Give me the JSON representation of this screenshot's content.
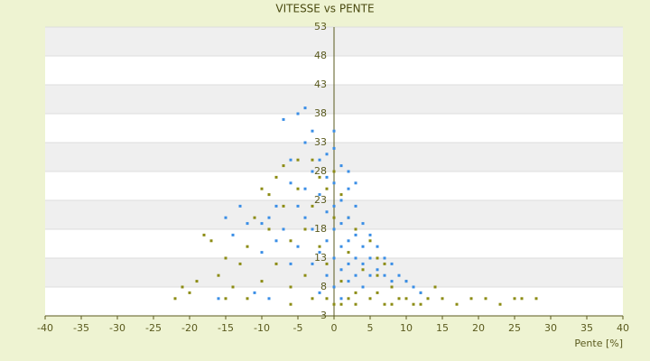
{
  "chart_data": {
    "type": "scatter",
    "title": "VITESSE vs PENTE",
    "x_label": "Pente [%]",
    "xlim": [
      -40,
      40
    ],
    "xticks": [
      -40,
      -35,
      -30,
      -25,
      -20,
      -15,
      -10,
      -5,
      0,
      5,
      10,
      15,
      20,
      25,
      30,
      35,
      40
    ],
    "ylim": [
      3,
      53
    ],
    "yticks": [
      3,
      8,
      13,
      18,
      23,
      28,
      33,
      38,
      43,
      48,
      53
    ],
    "grid": true,
    "series": [
      {
        "color": "#8c8c14",
        "x": [
          -22,
          -20,
          -19,
          -18,
          -17,
          -16,
          -15,
          -14,
          -13,
          -12,
          -11,
          -10,
          -10,
          -9,
          -8,
          -8,
          -7,
          -6,
          -6,
          -5,
          -5,
          -4,
          -4,
          -3,
          -3,
          -2,
          -2,
          -1,
          -1,
          0,
          0,
          1,
          1,
          2,
          2,
          3,
          3,
          4,
          4,
          5,
          5,
          6,
          6,
          7,
          7,
          8,
          9,
          10,
          11,
          12,
          13,
          14,
          15,
          17,
          19,
          21,
          23,
          25,
          26,
          28,
          -21,
          -12,
          -6,
          -3,
          0,
          2,
          -7,
          -9,
          1,
          3,
          -15,
          10,
          12,
          -1,
          6,
          8
        ],
        "values": [
          6,
          7,
          9,
          17,
          16,
          10,
          13,
          8,
          12,
          15,
          20,
          9,
          25,
          18,
          12,
          27,
          22,
          16,
          8,
          30,
          25,
          18,
          10,
          22,
          6,
          15,
          27,
          12,
          6,
          20,
          5,
          9,
          24,
          6,
          14,
          18,
          5,
          8,
          11,
          6,
          16,
          7,
          10,
          5,
          12,
          8,
          6,
          9,
          5,
          7,
          6,
          8,
          6,
          5,
          6,
          6,
          5,
          6,
          6,
          6,
          8,
          6,
          5,
          30,
          28,
          20,
          29,
          24,
          5,
          7,
          6,
          6,
          5,
          25,
          13,
          5
        ]
      },
      {
        "color": "#3a8ee6",
        "x": [
          -15,
          -14,
          -13,
          -12,
          -10,
          -9,
          -8,
          -7,
          -7,
          -6,
          -5,
          -4,
          -4,
          -3,
          -5,
          -4,
          -3,
          -3,
          -2,
          -2,
          -2,
          -1,
          -1,
          -1,
          -1,
          0,
          0,
          0,
          0,
          0,
          0,
          1,
          1,
          1,
          1,
          1,
          2,
          2,
          2,
          2,
          2,
          3,
          3,
          3,
          3,
          4,
          4,
          4,
          5,
          5,
          5,
          6,
          6,
          7,
          7,
          8,
          8,
          9,
          10,
          11,
          12,
          -6,
          -5,
          -8,
          -10,
          -11,
          -2,
          1,
          4,
          -6,
          -3,
          0,
          -1,
          2,
          3,
          -4,
          -16,
          -9
        ],
        "values": [
          20,
          17,
          22,
          19,
          14,
          20,
          16,
          18,
          37,
          30,
          38,
          39,
          33,
          35,
          22,
          25,
          28,
          18,
          30,
          24,
          14,
          27,
          21,
          16,
          10,
          32,
          26,
          22,
          18,
          13,
          8,
          29,
          23,
          19,
          15,
          11,
          25,
          20,
          16,
          12,
          9,
          22,
          17,
          13,
          10,
          19,
          15,
          12,
          17,
          13,
          10,
          15,
          11,
          13,
          10,
          12,
          9,
          10,
          9,
          8,
          7,
          12,
          15,
          22,
          19,
          7,
          7,
          6,
          8,
          26,
          12,
          35,
          31,
          28,
          26,
          20,
          6,
          6
        ]
      }
    ]
  }
}
